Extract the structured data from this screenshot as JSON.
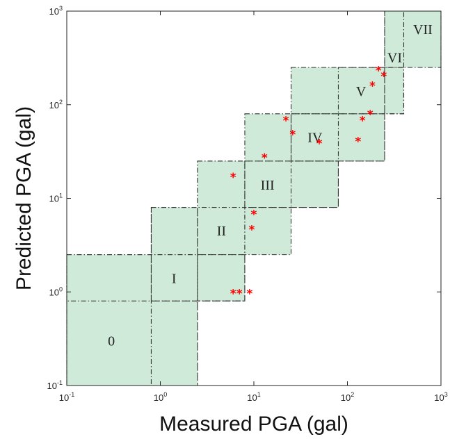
{
  "chart_data": {
    "type": "scatter",
    "xlabel": "Measured PGA (gal)",
    "ylabel": "Predicted PGA (gal)",
    "xscale": "log",
    "yscale": "log",
    "xlim": [
      0.1,
      1000
    ],
    "ylim": [
      0.1,
      1000
    ],
    "x_ticks": [
      {
        "base": "10",
        "exp": "-1"
      },
      {
        "base": "10",
        "exp": "0"
      },
      {
        "base": "10",
        "exp": "1"
      },
      {
        "base": "10",
        "exp": "2"
      },
      {
        "base": "10",
        "exp": "3"
      }
    ],
    "y_ticks": [
      {
        "base": "10",
        "exp": "-1"
      },
      {
        "base": "10",
        "exp": "0"
      },
      {
        "base": "10",
        "exp": "1"
      },
      {
        "base": "10",
        "exp": "2"
      },
      {
        "base": "10",
        "exp": "3"
      }
    ],
    "zones": [
      {
        "label": "0",
        "x": [
          0.1,
          2.5
        ],
        "y": [
          0.1,
          2.5
        ]
      },
      {
        "label": "I",
        "x": [
          0.1,
          8
        ],
        "y": [
          0.8,
          2.5
        ]
      },
      {
        "label": "I",
        "x": [
          0.8,
          2.5
        ],
        "y": [
          0.1,
          8
        ]
      },
      {
        "label": "II",
        "x": [
          0.8,
          8
        ],
        "y": [
          0.8,
          8
        ]
      },
      {
        "label": "II",
        "x": [
          2.5,
          8
        ],
        "y": [
          0.8,
          25
        ]
      },
      {
        "label": "III",
        "x": [
          2.5,
          25
        ],
        "y": [
          2.5,
          25
        ]
      },
      {
        "label": "III",
        "x": [
          8,
          80
        ],
        "y": [
          8,
          25
        ]
      },
      {
        "label": "IV",
        "x": [
          8,
          80
        ],
        "y": [
          8,
          80
        ]
      },
      {
        "label": "IV",
        "x": [
          25,
          250
        ],
        "y": [
          25,
          80
        ]
      },
      {
        "label": "V",
        "x": [
          25,
          250
        ],
        "y": [
          25,
          250
        ]
      },
      {
        "label": "V",
        "x": [
          80,
          400
        ],
        "y": [
          80,
          250
        ]
      },
      {
        "label": "VI",
        "x": [
          250,
          400
        ],
        "y": [
          80,
          1000
        ]
      },
      {
        "label": "VII",
        "x": [
          250,
          1000
        ],
        "y": [
          250,
          1000
        ]
      }
    ],
    "zone_labels": [
      {
        "text": "0",
        "x": 0.3,
        "y": 0.3
      },
      {
        "text": "I",
        "x": 1.4,
        "y": 1.4
      },
      {
        "text": "II",
        "x": 4.5,
        "y": 4.5
      },
      {
        "text": "III",
        "x": 14,
        "y": 14
      },
      {
        "text": "IV",
        "x": 45,
        "y": 45
      },
      {
        "text": "V",
        "x": 140,
        "y": 140
      },
      {
        "text": "VI",
        "x": 320,
        "y": 320
      },
      {
        "text": "VII",
        "x": 640,
        "y": 640
      }
    ],
    "points": {
      "marker": "*",
      "color": "#ff0000",
      "data": [
        {
          "x": 6.0,
          "y": 1.0
        },
        {
          "x": 7.0,
          "y": 1.0
        },
        {
          "x": 9.0,
          "y": 1.0
        },
        {
          "x": 9.5,
          "y": 4.8
        },
        {
          "x": 10.0,
          "y": 7.0
        },
        {
          "x": 6.0,
          "y": 17.5
        },
        {
          "x": 13.0,
          "y": 28
        },
        {
          "x": 22.0,
          "y": 70
        },
        {
          "x": 26.0,
          "y": 50
        },
        {
          "x": 50.0,
          "y": 40
        },
        {
          "x": 130,
          "y": 42
        },
        {
          "x": 145,
          "y": 70
        },
        {
          "x": 175,
          "y": 82
        },
        {
          "x": 185,
          "y": 165
        },
        {
          "x": 215,
          "y": 240
        },
        {
          "x": 245,
          "y": 210
        }
      ]
    },
    "colors": {
      "zone_fill": "#cfead8",
      "zone_edge": "#333333",
      "marker": "#ff0000"
    },
    "grid": false
  }
}
